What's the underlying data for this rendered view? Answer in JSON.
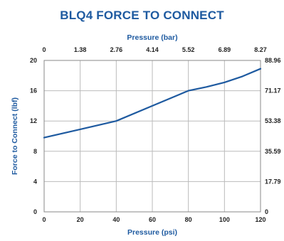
{
  "chart_data": {
    "type": "line",
    "title": "BLQ4 FORCE TO CONNECT",
    "xlabel": "Pressure (psi)",
    "x2label": "Pressure (bar)",
    "ylabel": "Force to Connect (lbf)",
    "xlim": [
      0,
      120
    ],
    "ylim": [
      0,
      20
    ],
    "x_ticks": [
      "0",
      "20",
      "40",
      "60",
      "80",
      "100",
      "120"
    ],
    "y_ticks": [
      "0",
      "4",
      "8",
      "12",
      "16",
      "20"
    ],
    "x2_ticks": [
      "0",
      "1.38",
      "2.76",
      "4.14",
      "5.52",
      "6.89",
      "8.27"
    ],
    "y2_ticks": [
      "0",
      "17.79",
      "35.59",
      "53.38",
      "71.17",
      "88.96"
    ],
    "grid": true,
    "colors": {
      "line": "#1e5aa0",
      "grid": "#bbbbbb",
      "title": "#1e5aa0"
    },
    "series": [
      {
        "x": [
          0,
          20,
          40,
          60,
          80,
          90,
          100,
          110,
          120
        ],
        "y": [
          9.8,
          10.9,
          12.0,
          14.0,
          16.0,
          16.5,
          17.1,
          17.9,
          18.9
        ]
      }
    ]
  }
}
